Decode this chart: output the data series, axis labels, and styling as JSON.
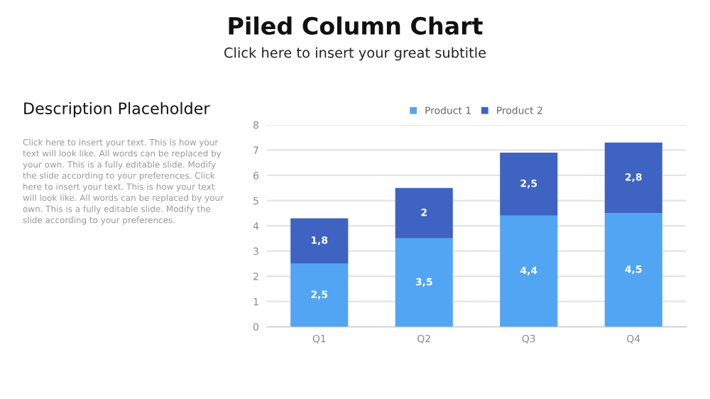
{
  "chart_data": {
    "type": "bar",
    "stacked": true,
    "title": "Piled Column Chart",
    "subtitle": "Click here to insert your great subtitle",
    "annotations": [
      "Description Placeholder",
      "Click here to insert your text. This is how your\ntext will look like. All words can be replaced by\nyour own. This is a fully editable slide. Modify\nthe slide according to your preferences. Click\nhere to insert your text. This is how your text\nwill look like. All words can be replaced by your\nown. This is a fully editable slide. Modify the\nslide according to your preferences."
    ],
    "categories": [
      "Q1",
      "Q2",
      "Q3",
      "Q4"
    ],
    "series": [
      {
        "name": "Product 1",
        "color": "#52a5f2",
        "values": [
          2.5,
          3.5,
          4.4,
          4.5
        ],
        "value_labels": [
          "2,5",
          "3,5",
          "4,4",
          "4,5"
        ]
      },
      {
        "name": "Product 2",
        "color": "#3e63c2",
        "values": [
          1.8,
          2,
          2.5,
          2.8
        ],
        "value_labels": [
          "1,8",
          "2",
          "2,5",
          "2,8"
        ]
      }
    ],
    "ylim": [
      0,
      8
    ],
    "yticks": [
      0,
      1,
      2,
      3,
      4,
      5,
      6,
      7,
      8
    ],
    "grid": "y",
    "legend": "top"
  }
}
